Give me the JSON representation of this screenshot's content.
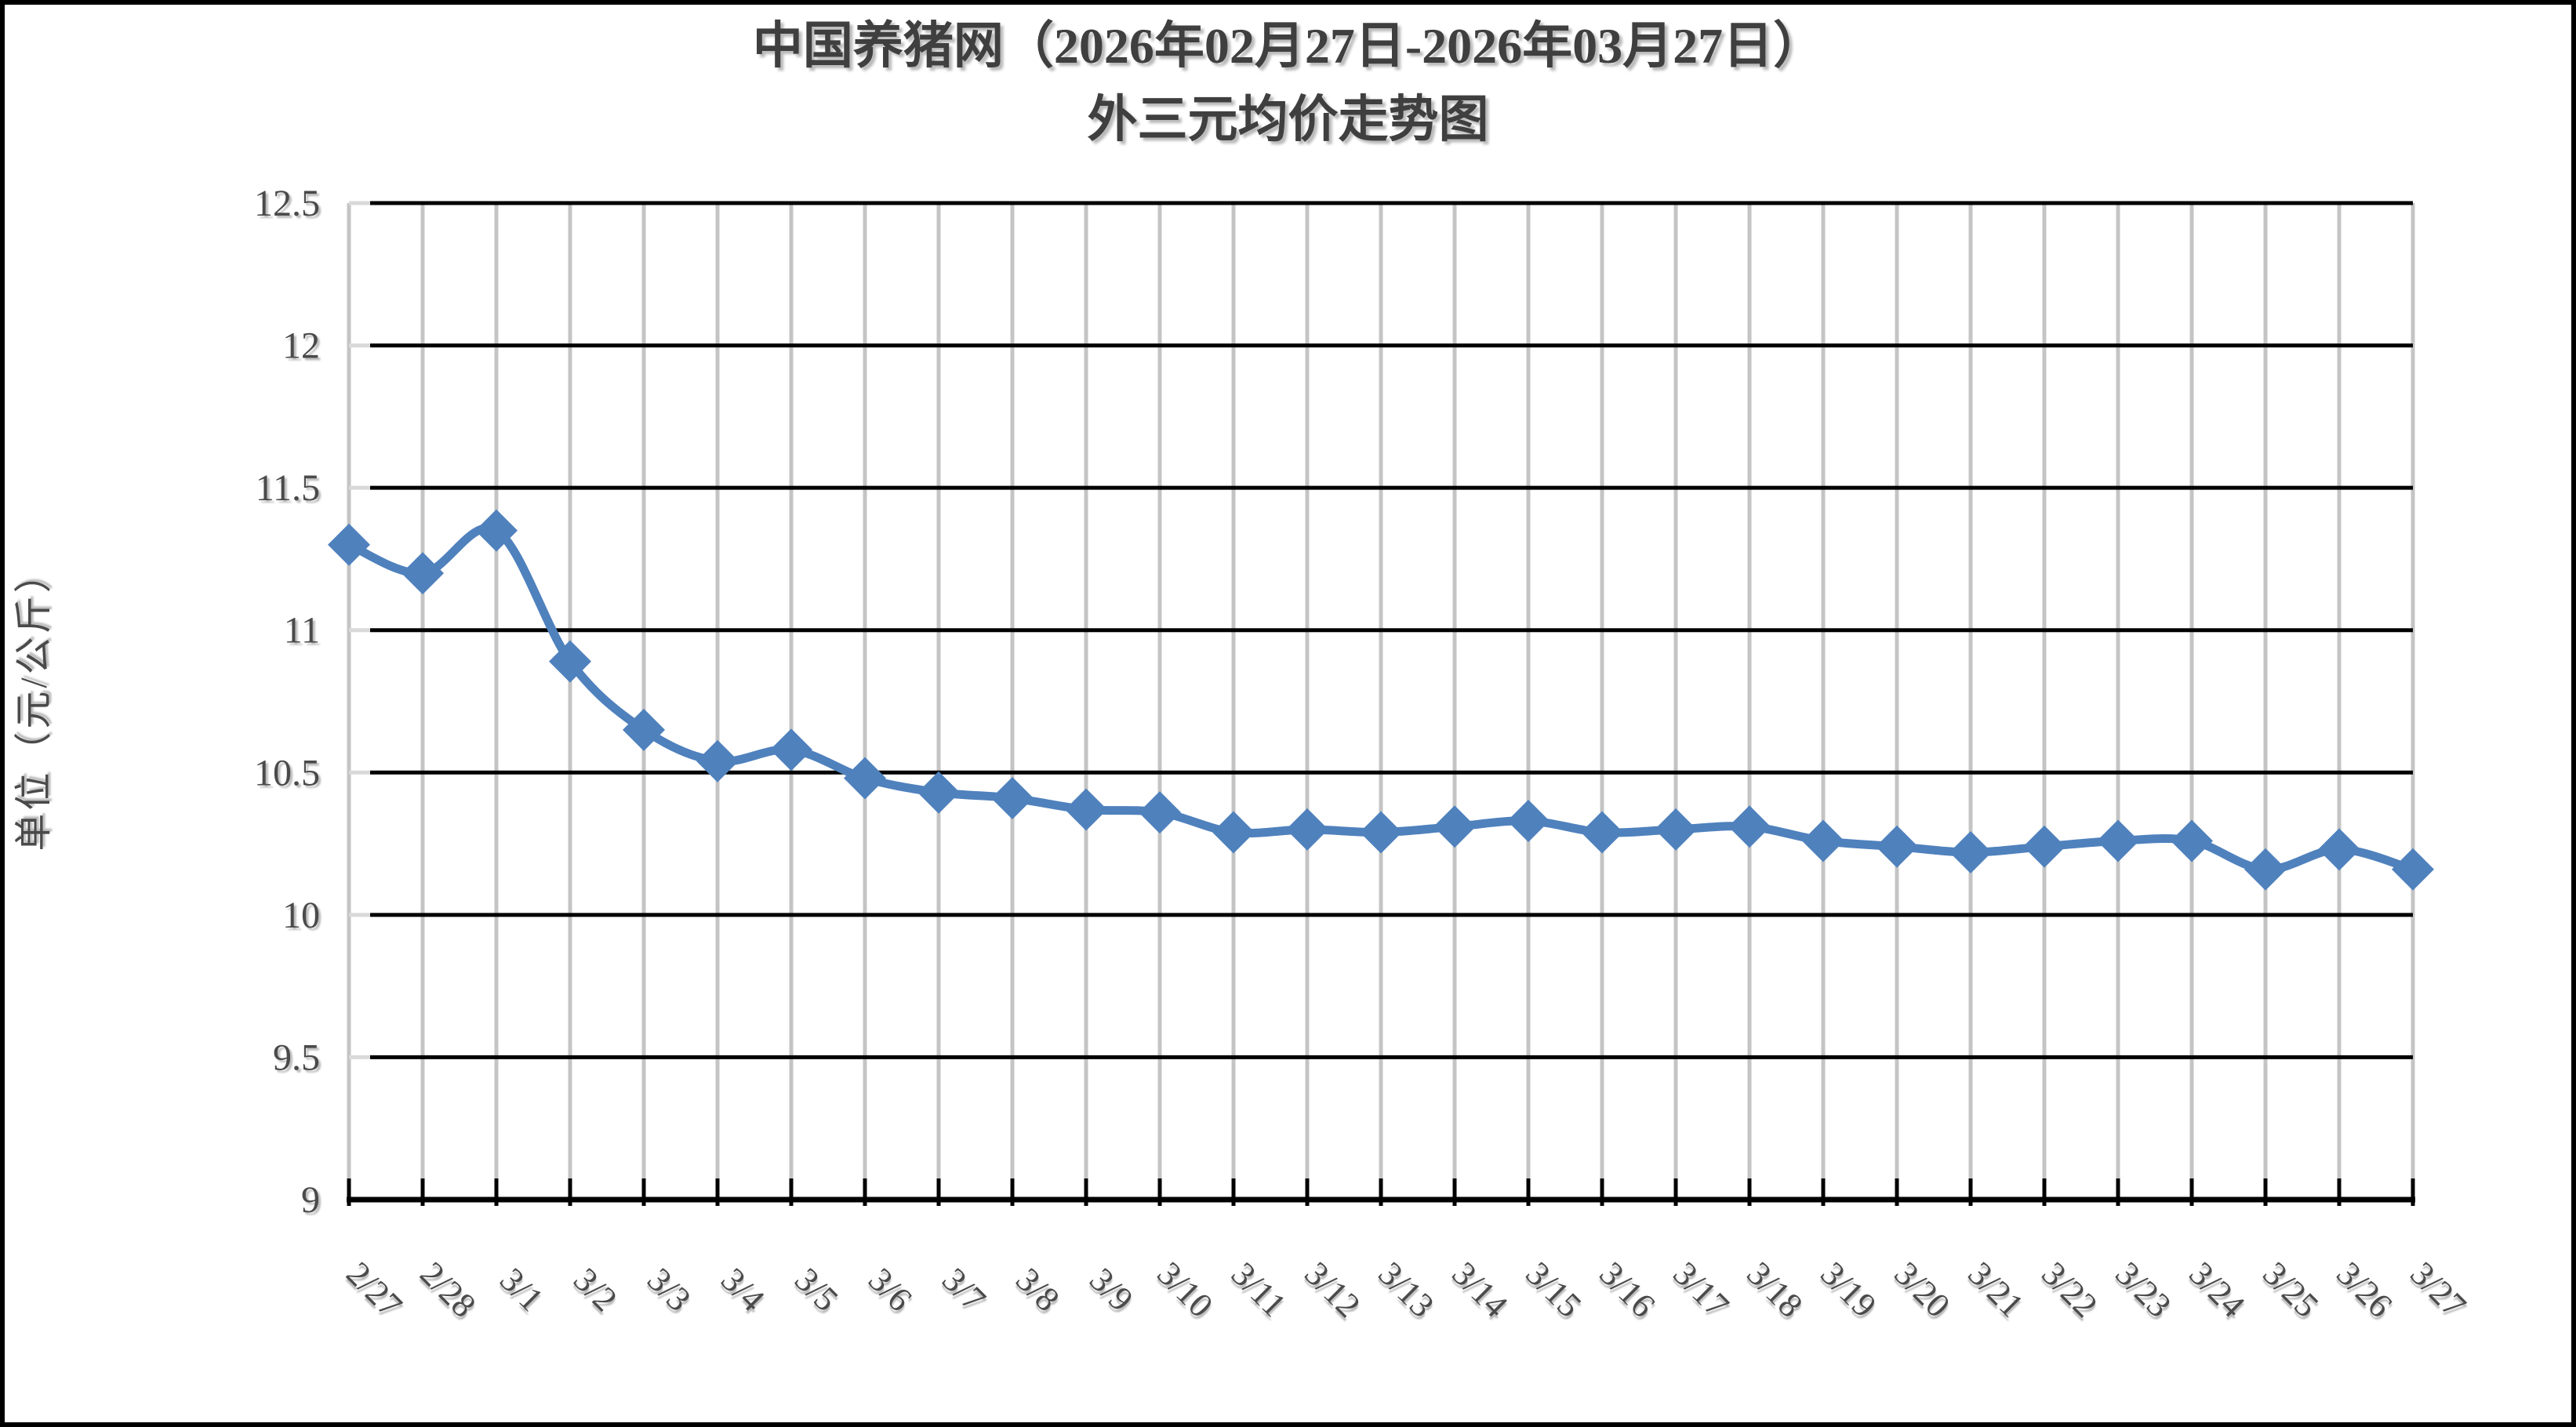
{
  "title": {
    "line1": "中国养猪网（2026年02月27日-2026年03月27日）",
    "line2": "外三元均价走势图"
  },
  "y_axis": {
    "title": "单位（元/公斤）",
    "tick_labels": [
      "12.5",
      "12",
      "11.5",
      "11",
      "10.5",
      "10",
      "9.5",
      "9"
    ]
  },
  "colors": {
    "series": "#4F81BD",
    "horizontal_grid": "#000000",
    "vertical_grid": "#C4C4C4",
    "axis": "#000000",
    "text": "#4A4A4A",
    "frame": "#000000",
    "background": "#FFFFFF"
  },
  "chart_data": {
    "type": "line",
    "title": "中国养猪网（2026年02月27日-2026年03月27日）外三元均价走势图",
    "categories": [
      "2/27",
      "2/28",
      "3/1",
      "3/2",
      "3/3",
      "3/4",
      "3/5",
      "3/6",
      "3/7",
      "3/8",
      "3/9",
      "3/10",
      "3/11",
      "3/12",
      "3/13",
      "3/14",
      "3/15",
      "3/16",
      "3/17",
      "3/18",
      "3/19",
      "3/20",
      "3/21",
      "3/22",
      "3/23",
      "3/24",
      "3/25",
      "3/26",
      "3/27"
    ],
    "values": [
      11.3,
      11.2,
      11.35,
      10.89,
      10.65,
      10.54,
      10.58,
      10.48,
      10.43,
      10.41,
      10.37,
      10.36,
      10.29,
      10.3,
      10.29,
      10.31,
      10.33,
      10.29,
      10.3,
      10.31,
      10.26,
      10.24,
      10.22,
      10.24,
      10.26,
      10.26,
      10.16,
      10.23,
      10.16
    ],
    "xlabel": "",
    "ylabel": "单位（元/公斤）",
    "ylim": [
      9,
      12.5
    ],
    "ytick_step": 0.5,
    "y_tick_labels": [
      "9",
      "9.5",
      "10",
      "10.5",
      "11",
      "11.5",
      "12",
      "12.5"
    ],
    "grid": {
      "horizontal": true,
      "vertical": true
    },
    "legend": "none",
    "marker": "diamond",
    "smoothed": true,
    "series_color": "#4F81BD"
  }
}
